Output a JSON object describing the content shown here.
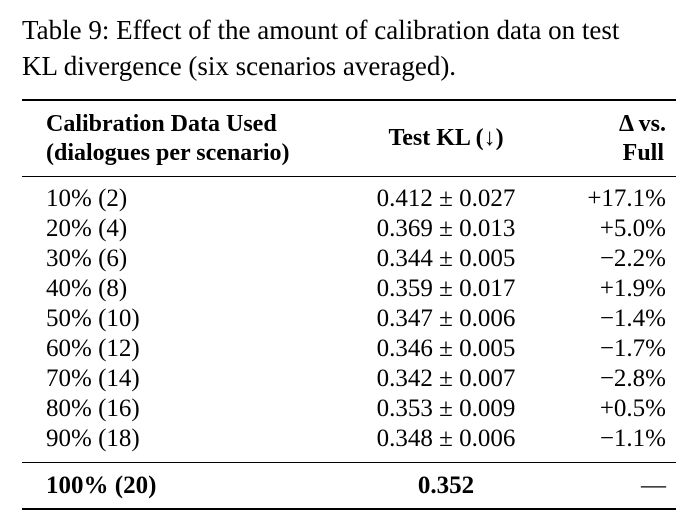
{
  "caption": {
    "line1": "Table 9: Effect of the amount of calibration data on test",
    "line2": "KL divergence (six scenarios averaged)."
  },
  "header": {
    "col1_line1": "Calibration Data Used",
    "col1_line2": "(dialogues per scenario)",
    "col2": "Test KL (↓)",
    "col3_line1": "Δ vs.",
    "col3_line2": "Full"
  },
  "rows": [
    {
      "data": "10% (2)",
      "kl": "0.412 ± 0.027",
      "delta": "+17.1%"
    },
    {
      "data": "20% (4)",
      "kl": "0.369 ± 0.013",
      "delta": "+5.0%"
    },
    {
      "data": "30% (6)",
      "kl": "0.344 ± 0.005",
      "delta": "−2.2%"
    },
    {
      "data": "40% (8)",
      "kl": "0.359 ± 0.017",
      "delta": "+1.9%"
    },
    {
      "data": "50% (10)",
      "kl": "0.347 ± 0.006",
      "delta": "−1.4%"
    },
    {
      "data": "60% (12)",
      "kl": "0.346 ± 0.005",
      "delta": "−1.7%"
    },
    {
      "data": "70% (14)",
      "kl": "0.342 ± 0.007",
      "delta": "−2.8%"
    },
    {
      "data": "80% (16)",
      "kl": "0.353 ± 0.009",
      "delta": "+0.5%"
    },
    {
      "data": "90% (18)",
      "kl": "0.348 ± 0.006",
      "delta": "−1.1%"
    }
  ],
  "final_row": {
    "data": "100% (20)",
    "kl": "0.352",
    "delta": "—"
  }
}
